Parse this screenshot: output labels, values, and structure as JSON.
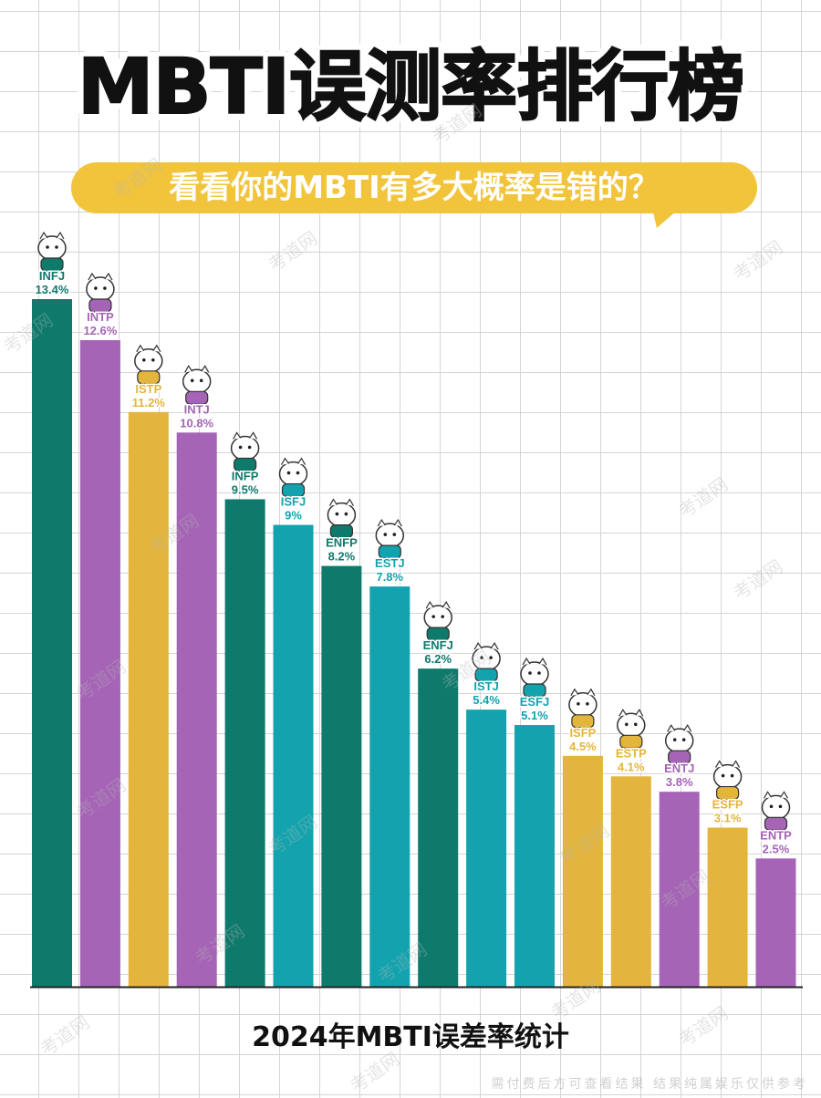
{
  "title": "MBTI误测率排行榜",
  "subtitle": "看看你的MBTI有多大概率是错的？",
  "footer": "2024年MBTI误差率统计",
  "watermark": "考道网",
  "disclaimer": "需付费后方可查看结果 结果纯属娱乐仅供参考",
  "colors": {
    "teal_dark": "#0e7a6c",
    "purple": "#a564b6",
    "yellow": "#e4b53c",
    "teal_light": "#12a3ae",
    "bubble": "#f2c43c"
  },
  "chart_data": {
    "type": "bar",
    "categories": [
      "INFJ",
      "INTP",
      "ISTP",
      "INTJ",
      "INFP",
      "ISFJ",
      "ENFP",
      "ESTJ",
      "ENFJ",
      "ISTJ",
      "ESFJ",
      "ISFP",
      "ESTP",
      "ENTJ",
      "ESFP",
      "ENTP"
    ],
    "value_labels": [
      "13.4%",
      "12.6%",
      "11.2%",
      "10.8%",
      "9.5%",
      "9%",
      "8.2%",
      "7.8%",
      "6.2%",
      "5.4%",
      "5.1%",
      "4.5%",
      "4.1%",
      "3.8%",
      "3.1%",
      "2.5%"
    ],
    "values": [
      13.4,
      12.6,
      11.2,
      10.8,
      9.5,
      9,
      8.2,
      7.8,
      6.2,
      5.4,
      5.1,
      4.5,
      4.1,
      3.8,
      3.1,
      2.5
    ],
    "bar_colors": [
      "#0e7a6c",
      "#a564b6",
      "#e4b53c",
      "#a564b6",
      "#0e7a6c",
      "#12a3ae",
      "#0e7a6c",
      "#12a3ae",
      "#0e7a6c",
      "#12a3ae",
      "#12a3ae",
      "#e4b53c",
      "#e4b53c",
      "#a564b6",
      "#e4b53c",
      "#a564b6"
    ],
    "label_colors": [
      "#0e7a6c",
      "#a564b6",
      "#e4b53c",
      "#a564b6",
      "#0e7a6c",
      "#12a3ae",
      "#0e7a6c",
      "#12a3ae",
      "#0e7a6c",
      "#12a3ae",
      "#12a3ae",
      "#e4b53c",
      "#e4b53c",
      "#a564b6",
      "#e4b53c",
      "#a564b6"
    ],
    "ylim": [
      0,
      13.4
    ],
    "grid": true,
    "legend": "none"
  }
}
